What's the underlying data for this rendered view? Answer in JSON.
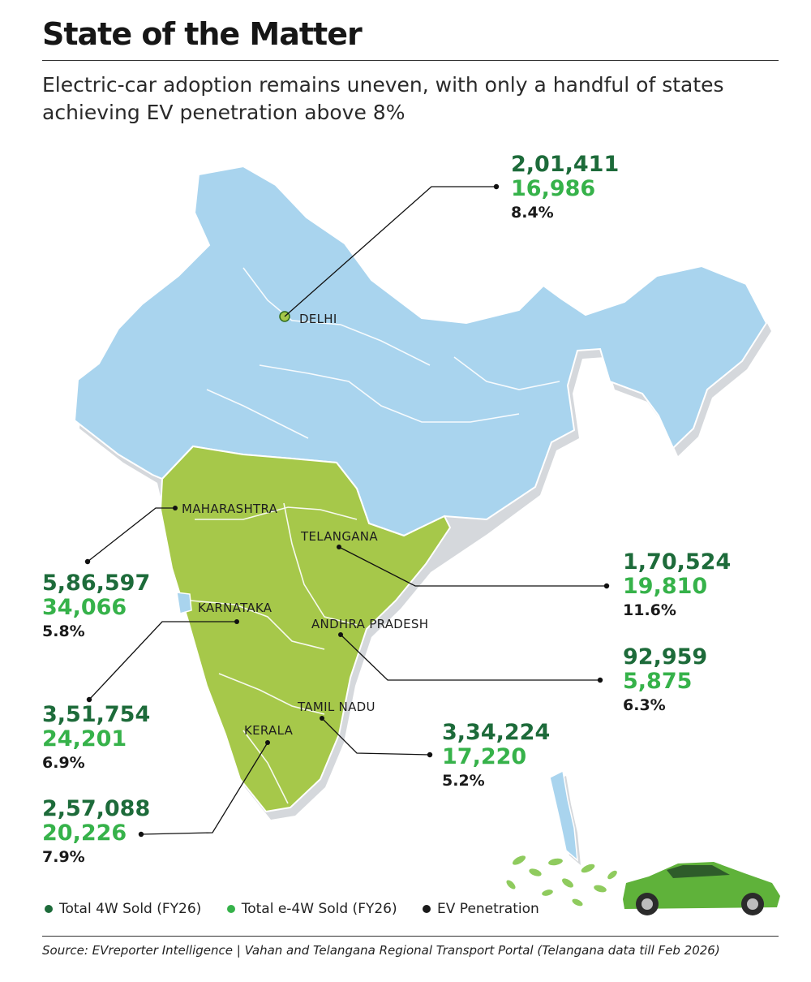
{
  "title": "State of the Matter",
  "subtitle": "Electric-car adoption remains uneven, with only a handful of states achieving EV penetration above 8%",
  "colors": {
    "total_4w": "#1d6b3a",
    "total_e4w": "#36b24a",
    "penetration": "#1a1a1a",
    "map_north": "#a9d4ee",
    "map_south": "#a6c84a"
  },
  "states": [
    {
      "label": "DELHI",
      "total": "2,01,411",
      "ev": "16,986",
      "penetration": "8.4%"
    },
    {
      "label": "MAHARASHTRA",
      "total": "5,86,597",
      "ev": "34,066",
      "penetration": "5.8%"
    },
    {
      "label": "TELANGANA",
      "total": "1,70,524",
      "ev": "19,810",
      "penetration": "11.6%"
    },
    {
      "label": "KARNATAKA",
      "total": "3,51,754",
      "ev": "24,201",
      "penetration": "6.9%"
    },
    {
      "label": "ANDHRA PRADESH",
      "total": "92,959",
      "ev": "5,875",
      "penetration": "6.3%"
    },
    {
      "label": "TAMIL NADU",
      "total": "3,34,224",
      "ev": "17,220",
      "penetration": "5.2%"
    },
    {
      "label": "KERALA",
      "total": "2,57,088",
      "ev": "20,226",
      "penetration": "7.9%"
    }
  ],
  "legend": [
    {
      "label": "Total 4W Sold (FY26)",
      "color": "#1d6b3a"
    },
    {
      "label": "Total e-4W Sold (FY26)",
      "color": "#36b24a"
    },
    {
      "label": "EV Penetration",
      "color": "#1a1a1a"
    }
  ],
  "source": "Source: EVreporter Intelligence | Vahan and Telangana Regional Transport Portal (Telangana data till Feb 2026)"
}
